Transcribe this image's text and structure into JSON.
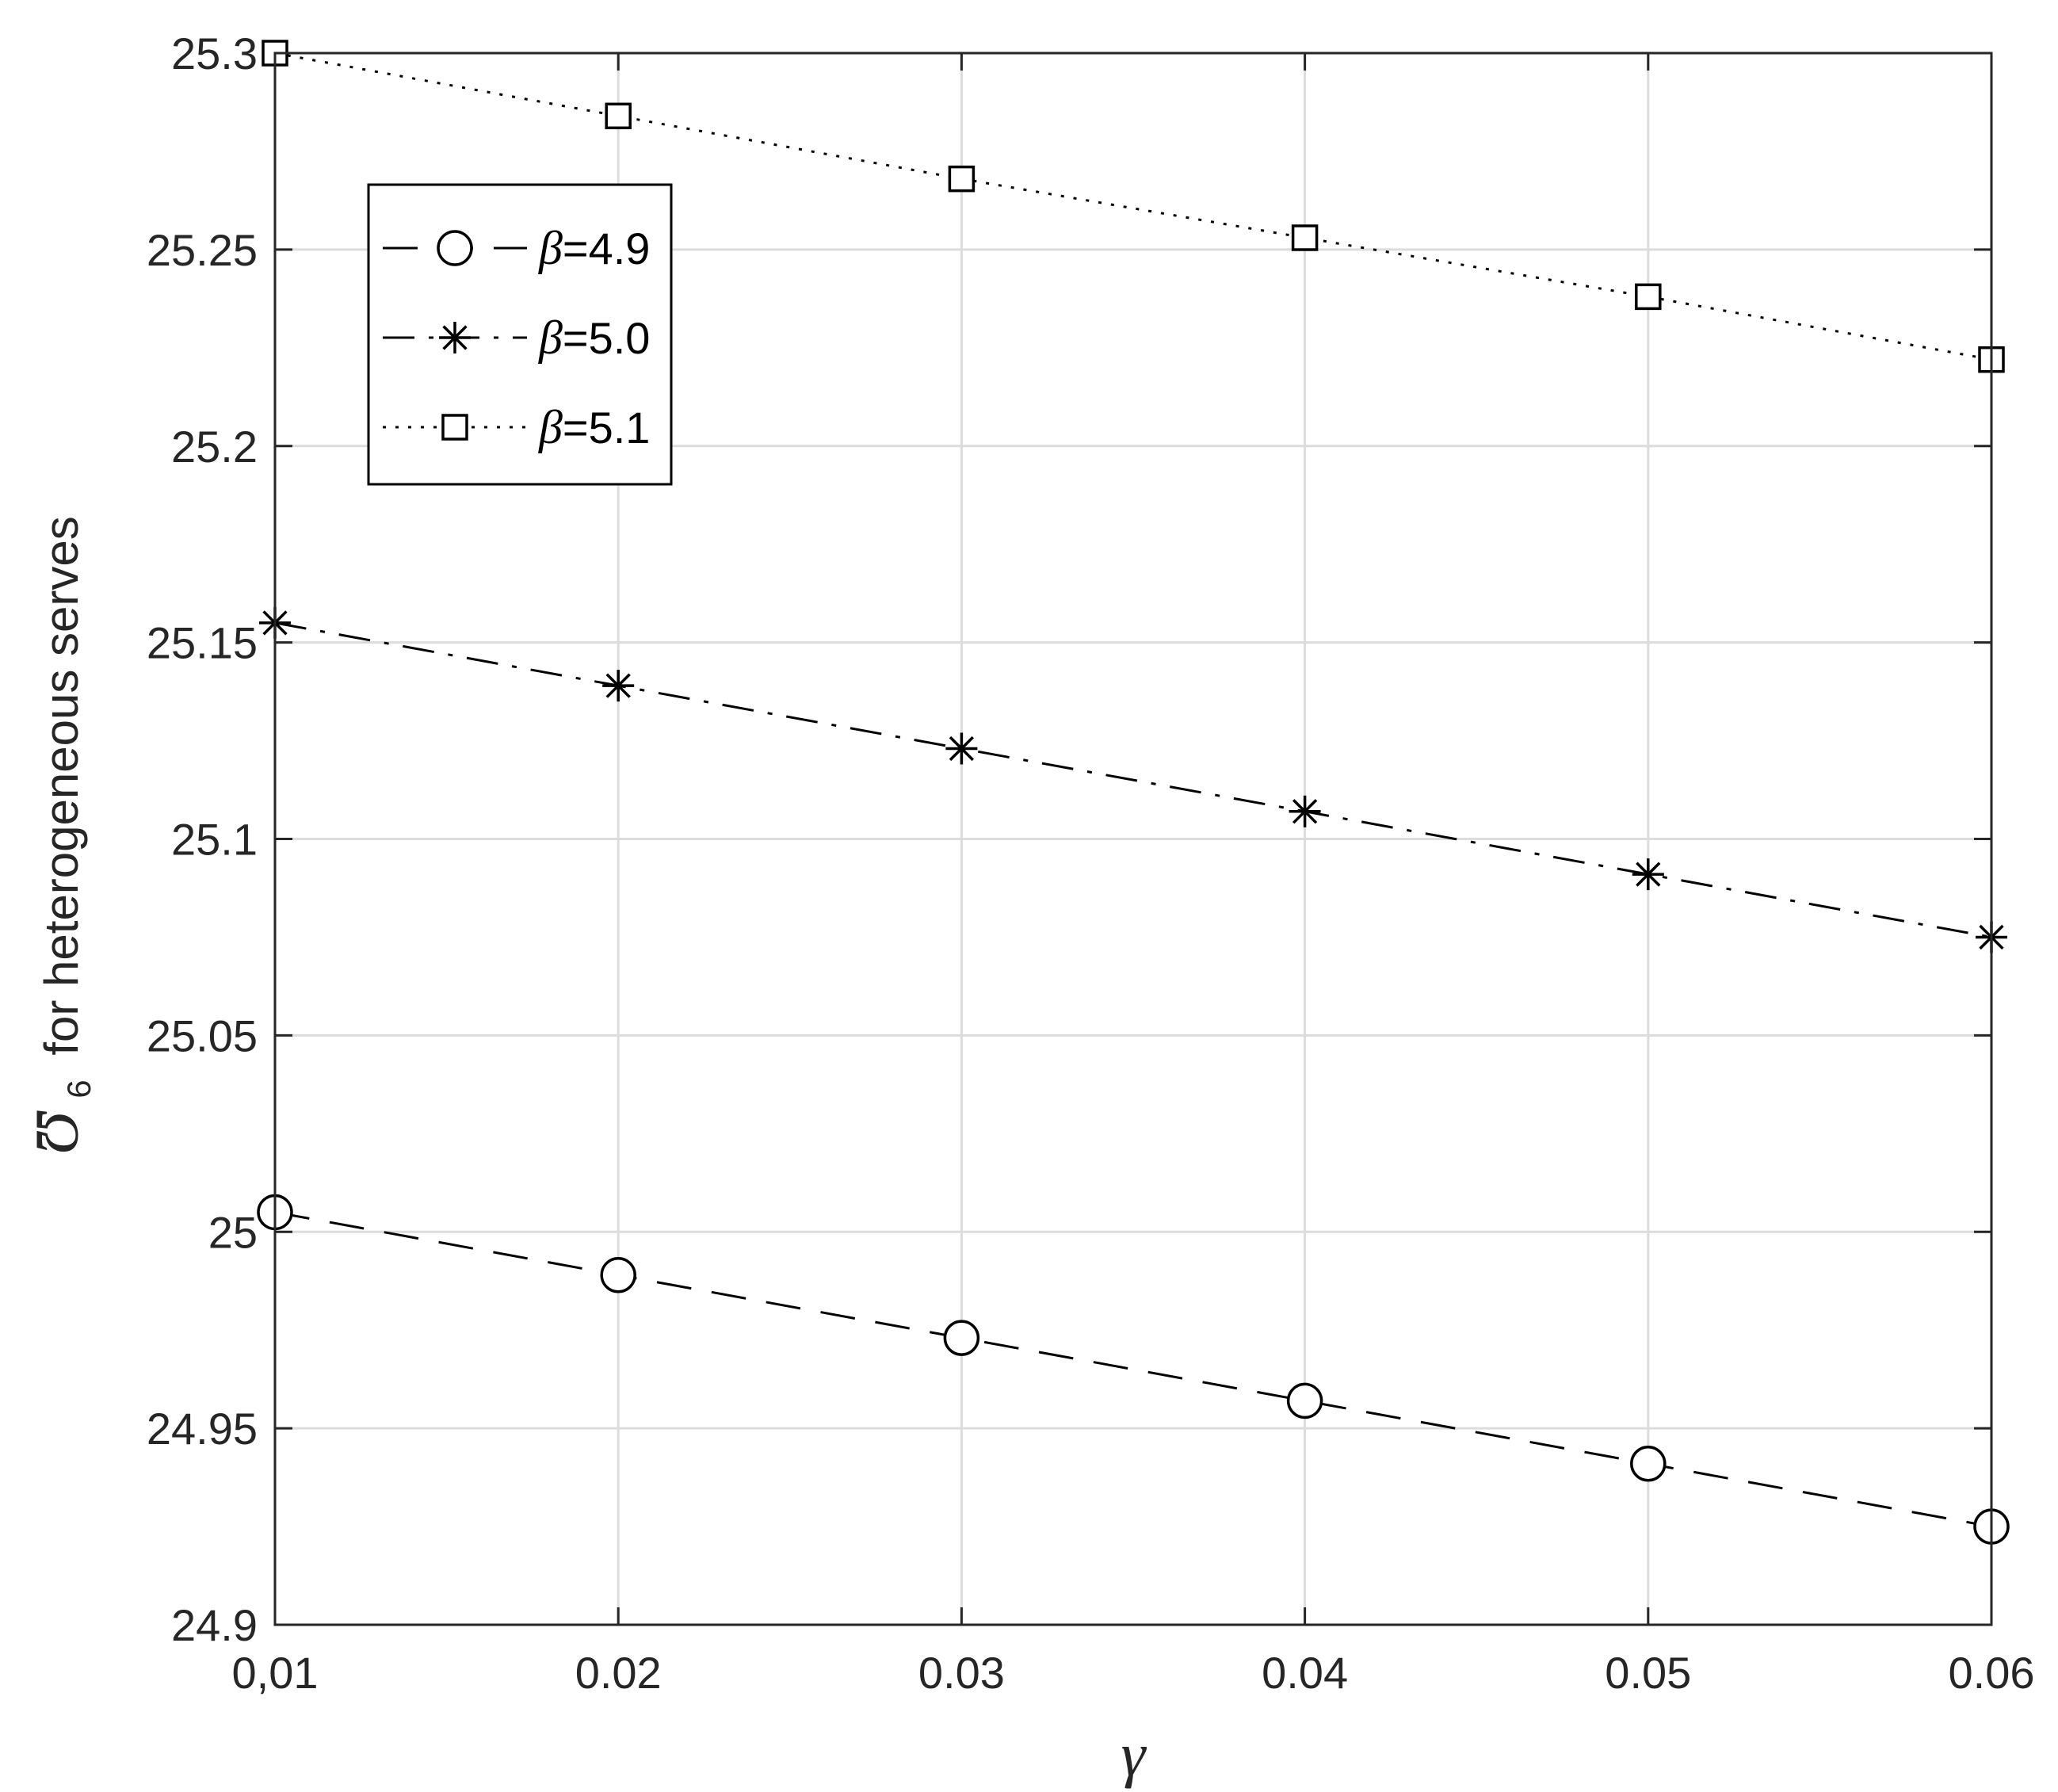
{
  "chart_data": {
    "type": "line",
    "xlabel": "γ",
    "ylabel": {
      "symbol": "Ʊ",
      "subscript": "6",
      "text": "for heterogeneous serves"
    },
    "x": [
      0.01,
      0.02,
      0.03,
      0.04,
      0.05,
      0.06
    ],
    "x_tick_labels": [
      "0,01",
      "0.02",
      "0.03",
      "0.04",
      "0.05",
      "0.06"
    ],
    "xlim": [
      0.01,
      0.06
    ],
    "ylim": [
      24.9,
      25.3
    ],
    "y_ticks": [
      24.9,
      24.95,
      25.0,
      25.05,
      25.1,
      25.15,
      25.2,
      25.25,
      25.3
    ],
    "y_tick_labels": [
      "24.9",
      "24.95",
      "25",
      "25.05",
      "25.1",
      "25.15",
      "25.2",
      "25.25",
      "25.3"
    ],
    "grid": true,
    "legend_position": "top-left",
    "series": [
      {
        "name": "β=4.9",
        "name_symbol": "β",
        "name_value": "=4.9",
        "marker": "circle",
        "line_style": "dashed",
        "values": [
          25.005,
          24.989,
          24.973,
          24.957,
          24.941,
          24.925
        ]
      },
      {
        "name": "β=5.0",
        "name_symbol": "β",
        "name_value": "=5.0",
        "marker": "asterisk",
        "line_style": "dash-dot",
        "values": [
          25.155,
          25.139,
          25.123,
          25.107,
          25.091,
          25.075
        ]
      },
      {
        "name": "β=5.1",
        "name_symbol": "β",
        "name_value": "=5.1",
        "marker": "square",
        "line_style": "dotted",
        "values": [
          25.3,
          25.284,
          25.268,
          25.253,
          25.238,
          25.222
        ]
      }
    ],
    "colors": {
      "line": "#000000",
      "axis": "#262626",
      "grid": "#dcdcdc"
    }
  }
}
